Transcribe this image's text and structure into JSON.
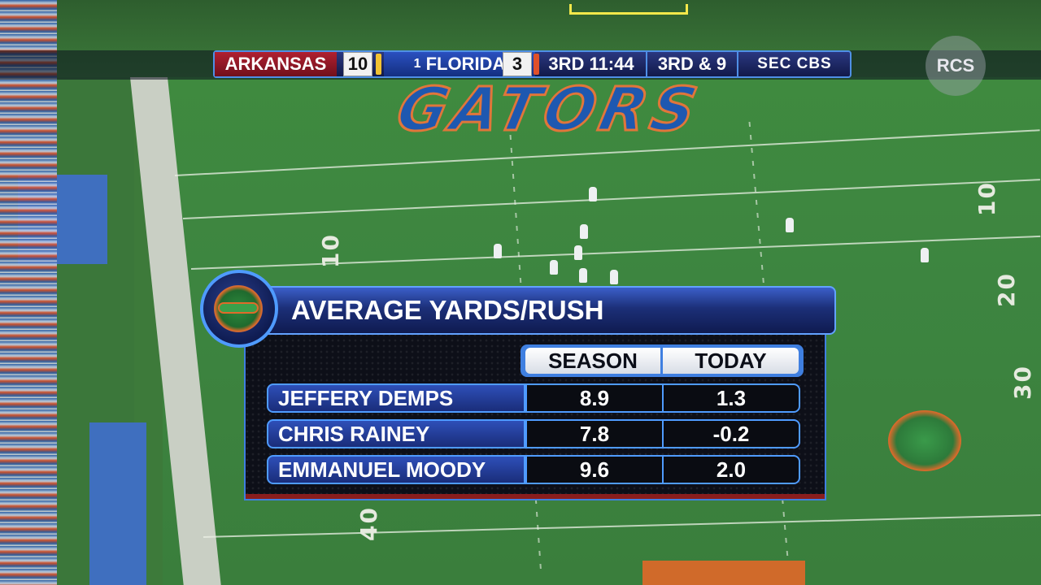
{
  "scorebug": {
    "away_team": "ARKANSAS",
    "away_score": "10",
    "home_rank": "1",
    "home_team": "FLORIDA",
    "home_score": "3",
    "clock": "3RD 11:44",
    "down": "3RD & 9",
    "network": "SEC CBS",
    "colors": {
      "away": "#b02030",
      "home": "#2a50c0",
      "bar": "#1c2a6a"
    }
  },
  "watermark": "RCS",
  "field": {
    "end_zone_text": "GATORS",
    "yard_numbers": [
      "10",
      "10",
      "20",
      "30",
      "40"
    ]
  },
  "stats_graphic": {
    "title": "AVERAGE YARDS/RUSH",
    "logo_icon": "gators-logo-icon",
    "columns": [
      "SEASON",
      "TODAY"
    ],
    "rows": [
      {
        "name": "JEFFERY DEMPS",
        "season": "8.9",
        "today": "1.3"
      },
      {
        "name": "CHRIS RAINEY",
        "season": "7.8",
        "today": "-0.2"
      },
      {
        "name": "EMMANUEL MOODY",
        "season": "9.6",
        "today": "2.0"
      }
    ],
    "colors": {
      "accent": "#3f7fe0",
      "header": "#1c2f78",
      "panel": "#0d0f18"
    }
  }
}
